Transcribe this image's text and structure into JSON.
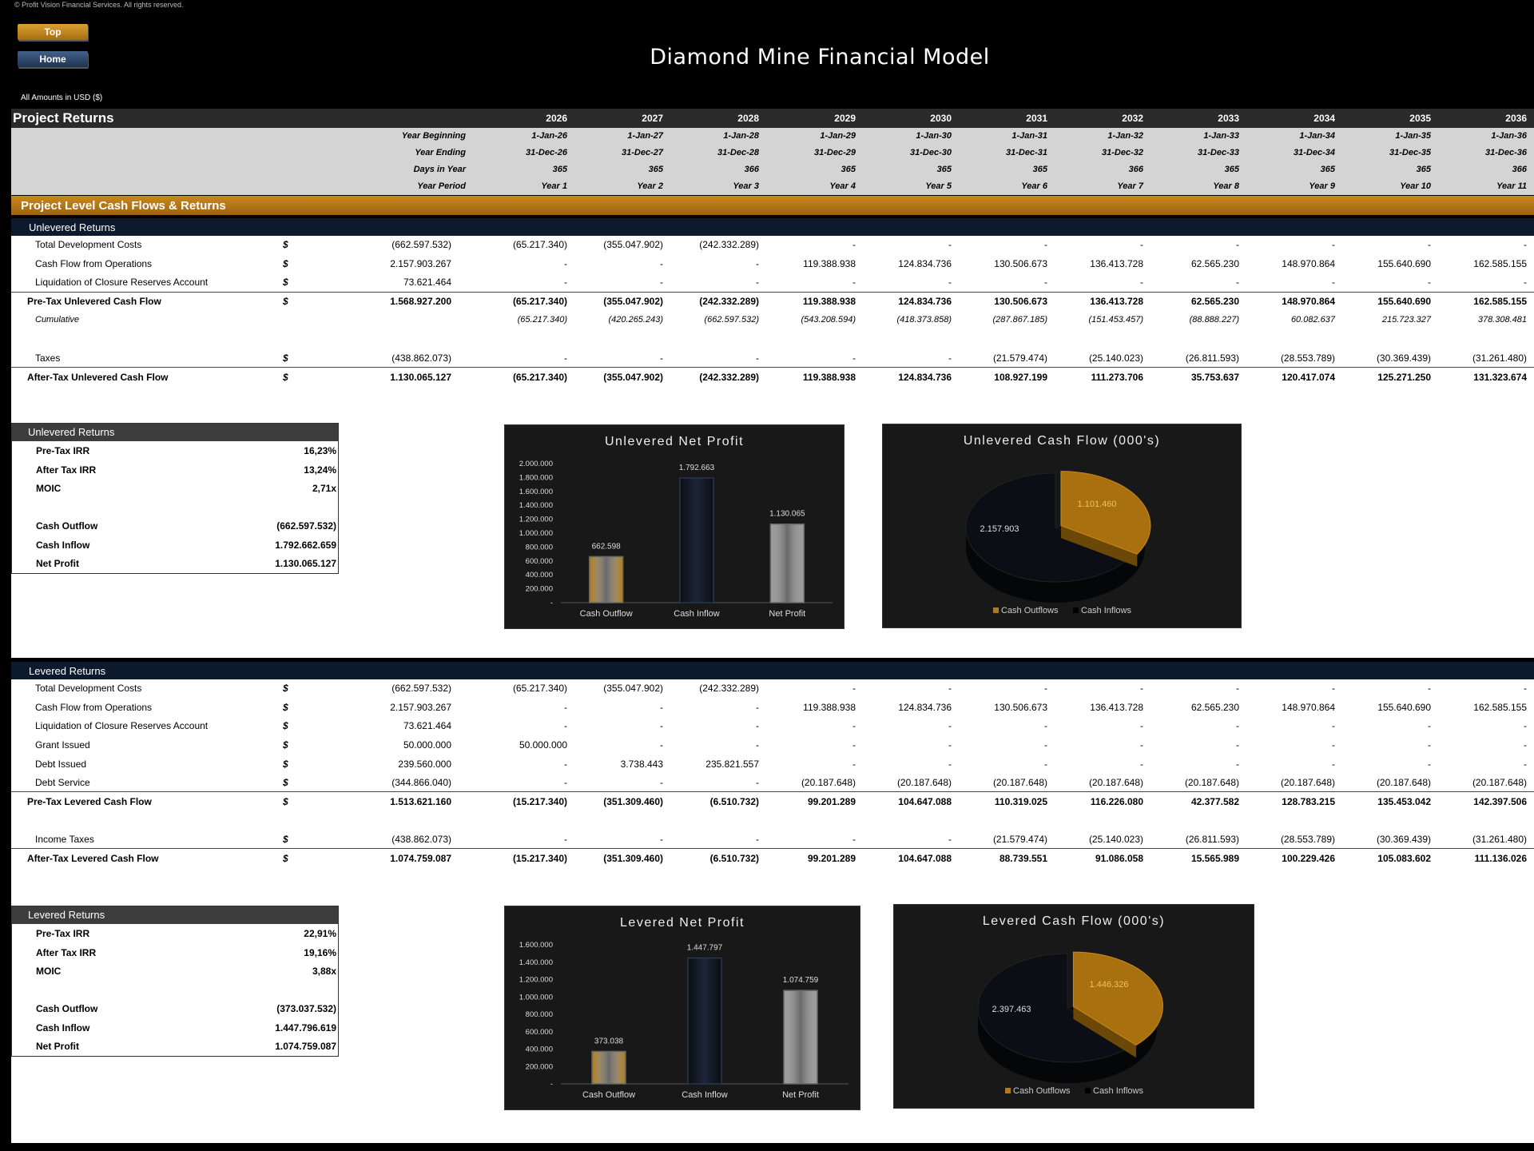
{
  "copyright": "© Profit Vision Financial Services. All rights reserved.",
  "nav": {
    "top_label": "Top",
    "home_label": "Home"
  },
  "title": "Diamond Mine Financial Model",
  "amounts": "All Amounts in  USD ($)",
  "section_title": "Project Returns",
  "years": [
    "2026",
    "2027",
    "2028",
    "2029",
    "2030",
    "2031",
    "2032",
    "2033",
    "2034",
    "2035",
    "2036"
  ],
  "header_rows": [
    {
      "label": "Year Beginning",
      "values": [
        "1-Jan-26",
        "1-Jan-27",
        "1-Jan-28",
        "1-Jan-29",
        "1-Jan-30",
        "1-Jan-31",
        "1-Jan-32",
        "1-Jan-33",
        "1-Jan-34",
        "1-Jan-35",
        "1-Jan-36"
      ]
    },
    {
      "label": "Year Ending",
      "values": [
        "31-Dec-26",
        "31-Dec-27",
        "31-Dec-28",
        "31-Dec-29",
        "31-Dec-30",
        "31-Dec-31",
        "31-Dec-32",
        "31-Dec-33",
        "31-Dec-34",
        "31-Dec-35",
        "31-Dec-36"
      ]
    },
    {
      "label": "Days in Year",
      "values": [
        "365",
        "365",
        "366",
        "365",
        "365",
        "365",
        "366",
        "365",
        "365",
        "365",
        "366"
      ]
    },
    {
      "label": "Year Period",
      "values": [
        "Year 1",
        "Year 2",
        "Year 3",
        "Year 4",
        "Year 5",
        "Year 6",
        "Year 7",
        "Year 8",
        "Year 9",
        "Year 10",
        "Year 11"
      ]
    }
  ],
  "gold_title": "Project Level Cash Flows & Returns",
  "unlevered": {
    "band": "Unlevered Returns",
    "rows": [
      {
        "label": "Total Development Costs",
        "cur": "$",
        "total": "(662.597.532)",
        "values": [
          "(65.217.340)",
          "(355.047.902)",
          "(242.332.289)",
          "-",
          "-",
          "-",
          "-",
          "-",
          "-",
          "-",
          "-"
        ]
      },
      {
        "label": "Cash Flow from Operations",
        "cur": "$",
        "total": "2.157.903.267",
        "values": [
          "-",
          "-",
          "-",
          "119.388.938",
          "124.834.736",
          "130.506.673",
          "136.413.728",
          "62.565.230",
          "148.970.864",
          "155.640.690",
          "162.585.155"
        ]
      },
      {
        "label": "Liquidation of Closure Reserves Account",
        "cur": "$",
        "total": "73.621.464",
        "values": [
          "-",
          "-",
          "-",
          "-",
          "-",
          "-",
          "-",
          "-",
          "-",
          "-",
          "-"
        ]
      },
      {
        "label": "Pre-Tax Unlevered Cash Flow",
        "cur": "$",
        "total": "1.568.927.200",
        "values": [
          "(65.217.340)",
          "(355.047.902)",
          "(242.332.289)",
          "119.388.938",
          "124.834.736",
          "130.506.673",
          "136.413.728",
          "62.565.230",
          "148.970.864",
          "155.640.690",
          "162.585.155"
        ]
      },
      {
        "label": "Cumulative",
        "cur": "",
        "total": "",
        "values": [
          "(65.217.340)",
          "(420.265.243)",
          "(662.597.532)",
          "(543.208.594)",
          "(418.373.858)",
          "(287.867.185)",
          "(151.453.457)",
          "(88.888.227)",
          "60.082.637",
          "215.723.327",
          "378.308.481"
        ]
      },
      {
        "label": "Taxes",
        "cur": "$",
        "total": "(438.862.073)",
        "values": [
          "-",
          "-",
          "-",
          "-",
          "-",
          "(21.579.474)",
          "(25.140.023)",
          "(26.811.593)",
          "(28.553.789)",
          "(30.369.439)",
          "(31.261.480)"
        ]
      },
      {
        "label": "After-Tax Unlevered Cash Flow",
        "cur": "$",
        "total": "1.130.065.127",
        "values": [
          "(65.217.340)",
          "(355.047.902)",
          "(242.332.289)",
          "119.388.938",
          "124.834.736",
          "108.927.199",
          "111.273.706",
          "35.753.637",
          "120.417.074",
          "125.271.250",
          "131.323.674"
        ]
      }
    ],
    "summary": {
      "title": "Unlevered Returns",
      "items": [
        {
          "k": "Pre-Tax IRR",
          "v": "16,23%"
        },
        {
          "k": "After Tax IRR",
          "v": "13,24%"
        },
        {
          "k": "MOIC",
          "v": "2,71x"
        },
        {
          "k": "",
          "v": ""
        },
        {
          "k": "Cash Outflow",
          "v": "(662.597.532)"
        },
        {
          "k": "Cash Inflow",
          "v": "1.792.662.659"
        },
        {
          "k": "Net Profit",
          "v": "1.130.065.127"
        }
      ]
    },
    "bar_chart": {
      "title": "Unlevered Net Profit",
      "categories": [
        "Cash Outflow",
        "Cash Inflow",
        "Net Profit"
      ],
      "values": [
        662598,
        1792663,
        1130065
      ],
      "labels": [
        "662.598",
        "1.792.663",
        "1.130.065"
      ],
      "ticks": [
        "2.000.000",
        "1.800.000",
        "1.600.000",
        "1.400.000",
        "1.200.000",
        "1.000.000",
        "800.000",
        "600.000",
        "400.000",
        "200.000",
        "-"
      ],
      "ymax": 2000000
    },
    "pie_chart": {
      "title": "Unlevered Cash Flow (000's)",
      "labels": [
        "2.157.903",
        "1.101.460"
      ],
      "values": [
        2157903,
        1101460
      ],
      "legend": [
        "Cash Outflows",
        "Cash Inflows"
      ]
    }
  },
  "levered": {
    "band": "Levered Returns",
    "rows": [
      {
        "label": "Total Development Costs",
        "cur": "$",
        "total": "(662.597.532)",
        "values": [
          "(65.217.340)",
          "(355.047.902)",
          "(242.332.289)",
          "-",
          "-",
          "-",
          "-",
          "-",
          "-",
          "-",
          "-"
        ]
      },
      {
        "label": "Cash Flow from Operations",
        "cur": "$",
        "total": "2.157.903.267",
        "values": [
          "-",
          "-",
          "-",
          "119.388.938",
          "124.834.736",
          "130.506.673",
          "136.413.728",
          "62.565.230",
          "148.970.864",
          "155.640.690",
          "162.585.155"
        ]
      },
      {
        "label": "Liquidation of Closure Reserves Account",
        "cur": "$",
        "total": "73.621.464",
        "values": [
          "-",
          "-",
          "-",
          "-",
          "-",
          "-",
          "-",
          "-",
          "-",
          "-",
          "-"
        ]
      },
      {
        "label": "Grant Issued",
        "cur": "$",
        "total": "50.000.000",
        "values": [
          "50.000.000",
          "-",
          "-",
          "-",
          "-",
          "-",
          "-",
          "-",
          "-",
          "-",
          "-"
        ]
      },
      {
        "label": "Debt Issued",
        "cur": "$",
        "total": "239.560.000",
        "values": [
          "-",
          "3.738.443",
          "235.821.557",
          "-",
          "-",
          "-",
          "-",
          "-",
          "-",
          "-",
          "-"
        ]
      },
      {
        "label": "Debt Service",
        "cur": "$",
        "total": "(344.866.040)",
        "values": [
          "-",
          "-",
          "-",
          "(20.187.648)",
          "(20.187.648)",
          "(20.187.648)",
          "(20.187.648)",
          "(20.187.648)",
          "(20.187.648)",
          "(20.187.648)",
          "(20.187.648)"
        ]
      },
      {
        "label": "Pre-Tax Levered Cash Flow",
        "cur": "$",
        "total": "1.513.621.160",
        "values": [
          "(15.217.340)",
          "(351.309.460)",
          "(6.510.732)",
          "99.201.289",
          "104.647.088",
          "110.319.025",
          "116.226.080",
          "42.377.582",
          "128.783.215",
          "135.453.042",
          "142.397.506"
        ]
      },
      {
        "label": "Income Taxes",
        "cur": "$",
        "total": "(438.862.073)",
        "values": [
          "-",
          "-",
          "-",
          "-",
          "-",
          "(21.579.474)",
          "(25.140.023)",
          "(26.811.593)",
          "(28.553.789)",
          "(30.369.439)",
          "(31.261.480)"
        ]
      },
      {
        "label": "After-Tax Levered Cash Flow",
        "cur": "$",
        "total": "1.074.759.087",
        "values": [
          "(15.217.340)",
          "(351.309.460)",
          "(6.510.732)",
          "99.201.289",
          "104.647.088",
          "88.739.551",
          "91.086.058",
          "15.565.989",
          "100.229.426",
          "105.083.602",
          "111.136.026"
        ]
      }
    ],
    "summary": {
      "title": "Levered Returns",
      "items": [
        {
          "k": "Pre-Tax IRR",
          "v": "22,91%"
        },
        {
          "k": "After Tax IRR",
          "v": "19,16%"
        },
        {
          "k": "MOIC",
          "v": "3,88x"
        },
        {
          "k": "",
          "v": ""
        },
        {
          "k": "Cash Outflow",
          "v": "(373.037.532)"
        },
        {
          "k": "Cash Inflow",
          "v": "1.447.796.619"
        },
        {
          "k": "Net Profit",
          "v": "1.074.759.087"
        }
      ]
    },
    "bar_chart": {
      "title": "Levered Net Profit",
      "categories": [
        "Cash Outflow",
        "Cash Inflow",
        "Net Profit"
      ],
      "values": [
        373038,
        1447797,
        1074759
      ],
      "labels": [
        "373.038",
        "1.447.797",
        "1.074.759"
      ],
      "ticks": [
        "1.600.000",
        "1.400.000",
        "1.200.000",
        "1.000.000",
        "800.000",
        "600.000",
        "400.000",
        "200.000",
        "-"
      ],
      "ymax": 1600000
    },
    "pie_chart": {
      "title": "Levered Cash Flow (000's)",
      "labels": [
        "2.397.463",
        "1.446.326"
      ],
      "values": [
        2397463,
        1446326
      ],
      "legend": [
        "Cash Outflows",
        "Cash Inflows"
      ]
    }
  },
  "colors": {
    "gold": "#c9891d",
    "navy": "#0d1a2e",
    "outflow": "#b07a16",
    "inflow": "#0a0d14",
    "profit": "#9a9a9a"
  }
}
